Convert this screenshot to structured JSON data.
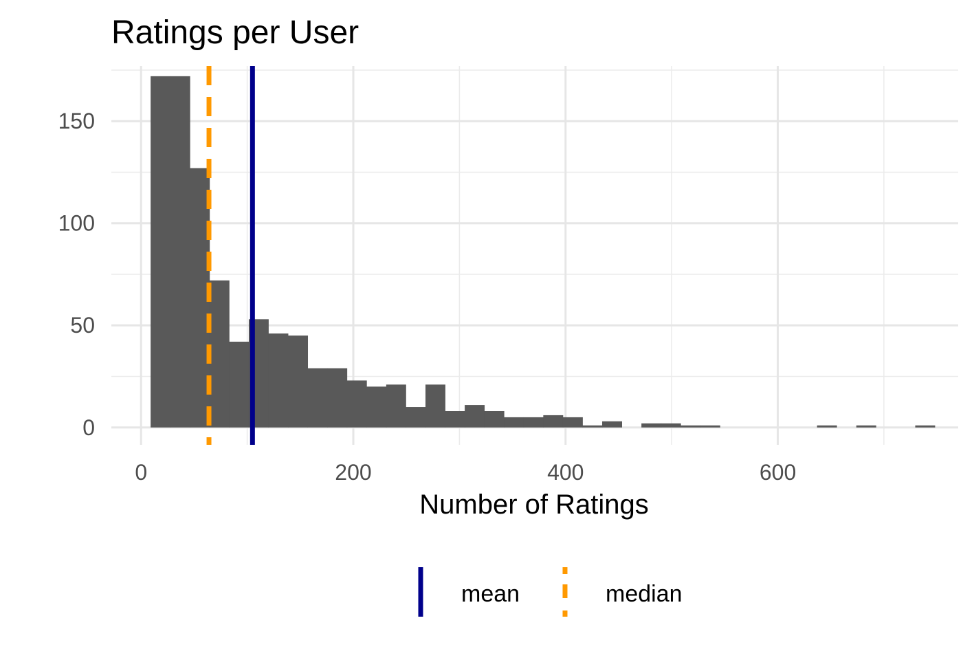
{
  "chart_data": {
    "type": "bar",
    "title": "Ratings per User",
    "xlabel": "Number of Ratings",
    "ylabel": "",
    "xlim": [
      -28,
      770
    ],
    "ylim": [
      -8.5,
      177
    ],
    "x_ticks": [
      0,
      200,
      400,
      600
    ],
    "y_ticks": [
      0,
      50,
      100,
      150
    ],
    "bin_width": 18.5,
    "bins": [
      {
        "x_start": 9,
        "x_end": 27.5,
        "count": 172
      },
      {
        "x_start": 27.5,
        "x_end": 46,
        "count": 172
      },
      {
        "x_start": 46,
        "x_end": 64.5,
        "count": 127
      },
      {
        "x_start": 64.5,
        "x_end": 83,
        "count": 72
      },
      {
        "x_start": 83,
        "x_end": 101.5,
        "count": 42
      },
      {
        "x_start": 101.5,
        "x_end": 120,
        "count": 53
      },
      {
        "x_start": 120,
        "x_end": 138.5,
        "count": 46
      },
      {
        "x_start": 138.5,
        "x_end": 157,
        "count": 45
      },
      {
        "x_start": 157,
        "x_end": 175.5,
        "count": 29
      },
      {
        "x_start": 175.5,
        "x_end": 194,
        "count": 29
      },
      {
        "x_start": 194,
        "x_end": 212.5,
        "count": 23
      },
      {
        "x_start": 212.5,
        "x_end": 231,
        "count": 20
      },
      {
        "x_start": 231,
        "x_end": 249.5,
        "count": 21
      },
      {
        "x_start": 249.5,
        "x_end": 268,
        "count": 10
      },
      {
        "x_start": 268,
        "x_end": 286.5,
        "count": 21
      },
      {
        "x_start": 286.5,
        "x_end": 305,
        "count": 8
      },
      {
        "x_start": 305,
        "x_end": 323.5,
        "count": 11
      },
      {
        "x_start": 323.5,
        "x_end": 342,
        "count": 8
      },
      {
        "x_start": 342,
        "x_end": 360.5,
        "count": 5
      },
      {
        "x_start": 360.5,
        "x_end": 379,
        "count": 5
      },
      {
        "x_start": 379,
        "x_end": 397.5,
        "count": 6
      },
      {
        "x_start": 397.5,
        "x_end": 416,
        "count": 5
      },
      {
        "x_start": 416,
        "x_end": 434.5,
        "count": 1
      },
      {
        "x_start": 434.5,
        "x_end": 453,
        "count": 3
      },
      {
        "x_start": 453,
        "x_end": 471.5,
        "count": 0
      },
      {
        "x_start": 471.5,
        "x_end": 490,
        "count": 2
      },
      {
        "x_start": 490,
        "x_end": 508.5,
        "count": 2
      },
      {
        "x_start": 508.5,
        "x_end": 527,
        "count": 1
      },
      {
        "x_start": 527,
        "x_end": 545.5,
        "count": 1
      },
      {
        "x_start": 637,
        "x_end": 655.5,
        "count": 1
      },
      {
        "x_start": 674,
        "x_end": 692.5,
        "count": 1
      },
      {
        "x_start": 729.5,
        "x_end": 748,
        "count": 1
      }
    ],
    "bar_color": "#595959",
    "grid": true,
    "reference_lines": [
      {
        "name": "mean",
        "x": 105,
        "color": "#00008B",
        "style": "solid"
      },
      {
        "name": "median",
        "x": 64,
        "color": "#FF9900",
        "style": "dashed"
      }
    ],
    "legend": {
      "position": "bottom",
      "items": [
        "mean",
        "median"
      ]
    }
  }
}
